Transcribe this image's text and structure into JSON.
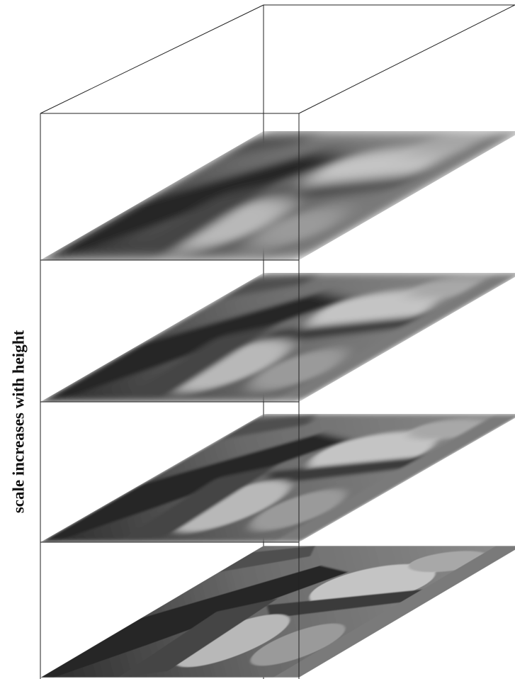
{
  "label": "scale increases with height"
}
